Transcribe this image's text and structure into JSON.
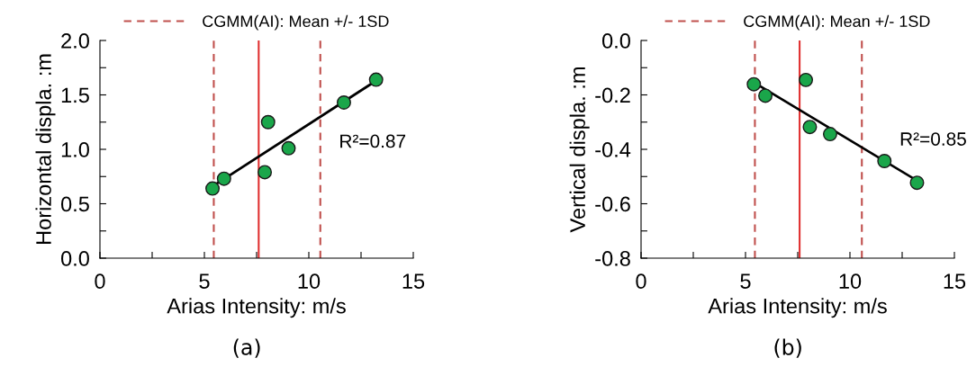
{
  "chart_data": [
    {
      "type": "scatter",
      "xlabel": "Arias Intensity: m/s",
      "ylabel": "Horizontal displa. :m",
      "grid": false,
      "legend": "top",
      "xlim": [
        0,
        15
      ],
      "ylim": [
        0,
        2
      ],
      "xticks": [
        0,
        {
          "value": 2.5,
          "label": null
        },
        5,
        {
          "value": 7.5,
          "label": null
        },
        10,
        {
          "value": 12.5,
          "label": null
        },
        15
      ],
      "yticks": [
        {
          "value": 0,
          "label": "0.0"
        },
        {
          "value": 0.25,
          "label": null
        },
        0.5,
        {
          "value": 0.75,
          "label": null
        },
        {
          "value": 1,
          "label": "1.0"
        },
        {
          "value": 1.25,
          "label": null
        },
        1.5,
        {
          "value": 1.75,
          "label": null
        },
        {
          "value": 2,
          "label": "2.0"
        }
      ],
      "series": [
        {
          "marker": "circle",
          "color": "#1aa64a",
          "x": [
            5.39,
            5.94,
            7.89,
            8.05,
            9.03,
            11.68,
            13.22
          ],
          "values": [
            0.64,
            0.73,
            0.79,
            1.25,
            1.01,
            1.43,
            1.64
          ]
        },
        {
          "type": "line",
          "marker": "none",
          "color": "#000000",
          "x": [
            5.39,
            13.22
          ],
          "values": [
            0.66,
            1.63
          ]
        }
      ],
      "ref_lines": [
        {
          "axis": "x",
          "value": 5.45,
          "label": "CGMM(AI): Mean +/- 1SD",
          "color": "#c0504d",
          "line_style": "dashed"
        },
        {
          "axis": "x",
          "value": 7.6,
          "color": "#e03030",
          "line_style": "solid"
        },
        {
          "axis": "x",
          "value": 10.55,
          "color": "#c0504d",
          "line_style": "dashed"
        }
      ],
      "annotations": [
        "R²=0.87",
        "(a)"
      ]
    },
    {
      "type": "scatter",
      "xlabel": "Arias Intensity: m/s",
      "ylabel": "Vertical displa. :m",
      "grid": false,
      "legend": "top",
      "xlim": [
        0,
        15
      ],
      "ylim": [
        -0.8,
        0
      ],
      "xticks": [
        0,
        {
          "value": 2.5,
          "label": null
        },
        5,
        {
          "value": 7.5,
          "label": null
        },
        10,
        {
          "value": 12.5,
          "label": null
        },
        15
      ],
      "yticks": [
        {
          "value": -0.8,
          "label": "-0.8"
        },
        {
          "value": -0.7,
          "label": null
        },
        {
          "value": -0.6,
          "label": "-0.6"
        },
        {
          "value": -0.5,
          "label": null
        },
        {
          "value": -0.4,
          "label": "-0.4"
        },
        {
          "value": -0.3,
          "label": null
        },
        {
          "value": -0.2,
          "label": "-0.2"
        },
        {
          "value": -0.1,
          "label": null
        },
        {
          "value": 0,
          "label": "0.0"
        }
      ],
      "series": [
        {
          "marker": "circle",
          "color": "#1aa64a",
          "x": [
            5.4,
            5.95,
            7.89,
            8.08,
            9.05,
            11.65,
            13.21
          ],
          "values": [
            -0.161,
            -0.203,
            -0.145,
            -0.318,
            -0.344,
            -0.443,
            -0.523
          ]
        },
        {
          "type": "line",
          "marker": "none",
          "color": "#000000",
          "x": [
            5.4,
            13.21
          ],
          "values": [
            -0.154,
            -0.515
          ]
        }
      ],
      "ref_lines": [
        {
          "axis": "x",
          "value": 5.45,
          "label": "CGMM(AI): Mean +/- 1SD",
          "color": "#c0504d",
          "line_style": "dashed"
        },
        {
          "axis": "x",
          "value": 7.59,
          "color": "#e03030",
          "line_style": "solid"
        },
        {
          "axis": "x",
          "value": 10.57,
          "color": "#c0504d",
          "line_style": "dashed"
        }
      ],
      "annotations": [
        "R²=0.85",
        "(b)"
      ]
    }
  ]
}
